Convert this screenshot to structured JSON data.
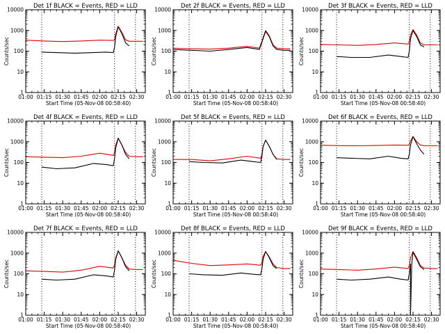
{
  "figure": {
    "x_label": "Start Time (05-Nov-08 00:58:40)",
    "y_label": "Counts/sec",
    "x_tick_labels": [
      "01:00",
      "01:15",
      "01:30",
      "01:45",
      "02:00",
      "02:15",
      "02:30"
    ],
    "y_tick_labels": [
      "1",
      "10",
      "100",
      "1000",
      "10000"
    ],
    "colors": {
      "events": "#000000",
      "lld": "#e00000",
      "axes": "#000000",
      "background": "#ffffff"
    }
  },
  "chart_data": [
    {
      "type": "line",
      "title": "Det 1f BLACK = Events, RED = LLD",
      "xlabel": "Start Time (05-Nov-08 00:58:40)",
      "ylabel": "Counts/sec",
      "y_scale": "log",
      "xlim": [
        "01:00",
        "02:37"
      ],
      "ylim": [
        1,
        10000
      ],
      "dotted_vlines": [
        "01:13",
        "02:12",
        "02:29"
      ],
      "series": [
        {
          "name": "BLACK = Events",
          "color": "#000000",
          "x": [
            "01:13",
            "01:25",
            "01:40",
            "01:55",
            "02:05",
            "02:11",
            "02:12",
            "02:13",
            "02:15",
            "02:18",
            "02:21",
            "02:24"
          ],
          "y": [
            90,
            85,
            80,
            85,
            90,
            85,
            150,
            500,
            1500,
            700,
            250,
            180
          ]
        },
        {
          "name": "RED = LLD",
          "color": "#e00000",
          "x": [
            "01:00",
            "01:15",
            "01:30",
            "01:45",
            "02:00",
            "02:11",
            "02:12",
            "02:13",
            "02:15",
            "02:18",
            "02:21",
            "02:24",
            "02:30",
            "02:35"
          ],
          "y": [
            340,
            310,
            290,
            310,
            340,
            330,
            350,
            700,
            1600,
            800,
            350,
            300,
            300,
            300
          ]
        }
      ]
    },
    {
      "type": "line",
      "title": "Det 2f BLACK = Events, RED = LLD",
      "xlabel": "Start Time (05-Nov-08 00:58:40)",
      "ylabel": "Counts/sec",
      "y_scale": "log",
      "xlim": [
        "01:00",
        "02:37"
      ],
      "ylim": [
        1,
        10000
      ],
      "dotted_vlines": [
        "01:13",
        "02:12",
        "02:29"
      ],
      "series": [
        {
          "name": "BLACK = Events",
          "color": "#000000",
          "x": [
            "01:00",
            "01:15",
            "01:30",
            "01:45",
            "02:00",
            "02:10",
            "02:13",
            "02:15",
            "02:18",
            "02:21",
            "02:24",
            "02:30",
            "02:35"
          ],
          "y": [
            120,
            110,
            100,
            120,
            150,
            120,
            400,
            900,
            500,
            180,
            120,
            110,
            110
          ]
        },
        {
          "name": "RED = LLD",
          "color": "#e00000",
          "x": [
            "01:00",
            "01:15",
            "01:30",
            "01:45",
            "02:00",
            "02:10",
            "02:13",
            "02:15",
            "02:18",
            "02:21",
            "02:24",
            "02:30",
            "02:35"
          ],
          "y": [
            140,
            130,
            125,
            140,
            170,
            140,
            450,
            1000,
            550,
            200,
            140,
            130,
            130
          ]
        }
      ]
    },
    {
      "type": "line",
      "title": "Det 3f BLACK = Events, RED = LLD",
      "xlabel": "Start Time (05-Nov-08 00:58:40)",
      "ylabel": "Counts/sec",
      "y_scale": "log",
      "xlim": [
        "01:00",
        "02:37"
      ],
      "ylim": [
        1,
        10000
      ],
      "dotted_vlines": [
        "01:13",
        "02:12",
        "02:29"
      ],
      "series": [
        {
          "name": "BLACK = Events",
          "color": "#000000",
          "x": [
            "01:13",
            "01:25",
            "01:40",
            "01:55",
            "02:05",
            "02:11",
            "02:12",
            "02:13",
            "02:15",
            "02:18",
            "02:21",
            "02:24"
          ],
          "y": [
            55,
            50,
            50,
            65,
            55,
            50,
            100,
            400,
            1000,
            500,
            200,
            160
          ]
        },
        {
          "name": "RED = LLD",
          "color": "#e00000",
          "x": [
            "01:00",
            "01:15",
            "01:30",
            "01:45",
            "02:00",
            "02:11",
            "02:12",
            "02:13",
            "02:15",
            "02:18",
            "02:21",
            "02:24",
            "02:30",
            "02:35"
          ],
          "y": [
            210,
            200,
            190,
            210,
            250,
            220,
            300,
            600,
            1100,
            600,
            250,
            200,
            200,
            200
          ]
        }
      ]
    },
    {
      "type": "line",
      "title": "Det 4f BLACK = Events, RED = LLD",
      "xlabel": "Start Time (05-Nov-08 00:58:40)",
      "ylabel": "Counts/sec",
      "y_scale": "log",
      "xlim": [
        "01:00",
        "02:37"
      ],
      "ylim": [
        1,
        10000
      ],
      "dotted_vlines": [
        "01:13",
        "02:12",
        "02:29"
      ],
      "series": [
        {
          "name": "BLACK = Events",
          "color": "#000000",
          "x": [
            "01:13",
            "01:25",
            "01:40",
            "01:55",
            "02:05",
            "02:11",
            "02:12",
            "02:13",
            "02:15",
            "02:18",
            "02:21",
            "02:24"
          ],
          "y": [
            60,
            50,
            55,
            90,
            80,
            70,
            150,
            500,
            1500,
            700,
            250,
            150
          ]
        },
        {
          "name": "RED = LLD",
          "color": "#e00000",
          "x": [
            "01:00",
            "01:15",
            "01:30",
            "01:45",
            "02:00",
            "02:11",
            "02:12",
            "02:13",
            "02:15",
            "02:18",
            "02:21",
            "02:24",
            "02:30",
            "02:35"
          ],
          "y": [
            190,
            180,
            170,
            200,
            280,
            220,
            300,
            700,
            1500,
            700,
            300,
            200,
            190,
            190
          ]
        }
      ]
    },
    {
      "type": "line",
      "title": "Det 5f BLACK = Events, RED = LLD",
      "xlabel": "Start Time (05-Nov-08 00:58:40)",
      "ylabel": "Counts/sec",
      "y_scale": "log",
      "xlim": [
        "01:00",
        "02:37"
      ],
      "ylim": [
        1,
        10000
      ],
      "dotted_vlines": [
        "01:13",
        "02:12",
        "02:29"
      ],
      "series": [
        {
          "name": "BLACK = Events",
          "color": "#000000",
          "x": [
            "01:13",
            "01:25",
            "01:40",
            "01:55",
            "02:05",
            "02:11",
            "02:12",
            "02:13",
            "02:15",
            "02:18",
            "02:21",
            "02:24"
          ],
          "y": [
            110,
            100,
            95,
            130,
            110,
            100,
            200,
            600,
            1200,
            600,
            250,
            140
          ]
        },
        {
          "name": "RED = LLD",
          "color": "#e00000",
          "x": [
            "01:00",
            "01:15",
            "01:30",
            "01:45",
            "02:00",
            "02:11",
            "02:12",
            "02:13",
            "02:15",
            "02:18",
            "02:21",
            "02:24",
            "02:30",
            "02:35"
          ],
          "y": [
            140,
            140,
            120,
            150,
            200,
            160,
            250,
            600,
            1200,
            600,
            250,
            150,
            140,
            140
          ]
        }
      ]
    },
    {
      "type": "line",
      "title": "Det 6f BLACK = Events, RED = LLD",
      "xlabel": "Start Time (05-Nov-08 00:58:40)",
      "ylabel": "Counts/sec",
      "y_scale": "log",
      "xlim": [
        "01:00",
        "02:37"
      ],
      "ylim": [
        1,
        10000
      ],
      "dotted_vlines": [
        "01:13",
        "02:12",
        "02:29"
      ],
      "series": [
        {
          "name": "BLACK = Events",
          "color": "#000000",
          "x": [
            "01:13",
            "01:25",
            "01:40",
            "01:55",
            "02:05",
            "02:11",
            "02:12",
            "02:13",
            "02:15",
            "02:18",
            "02:21",
            "02:24"
          ],
          "y": [
            170,
            160,
            150,
            200,
            160,
            150,
            250,
            700,
            1800,
            800,
            400,
            250
          ]
        },
        {
          "name": "RED = LLD",
          "color": "#e00000",
          "x": [
            "01:00",
            "01:15",
            "01:30",
            "01:45",
            "02:00",
            "02:11",
            "02:12",
            "02:13",
            "02:15",
            "02:18",
            "02:21",
            "02:24",
            "02:30",
            "02:35"
          ],
          "y": [
            680,
            650,
            640,
            660,
            700,
            680,
            750,
            1100,
            1800,
            1000,
            700,
            650,
            640,
            640
          ]
        }
      ]
    },
    {
      "type": "line",
      "title": "Det 7f BLACK = Events, RED = LLD",
      "xlabel": "Start Time (05-Nov-08 00:58:40)",
      "ylabel": "Counts/sec",
      "y_scale": "log",
      "xlim": [
        "01:00",
        "02:37"
      ],
      "ylim": [
        1,
        10000
      ],
      "dotted_vlines": [
        "01:13",
        "02:12",
        "02:29"
      ],
      "series": [
        {
          "name": "BLACK = Events",
          "color": "#000000",
          "x": [
            "01:13",
            "01:25",
            "01:40",
            "01:55",
            "02:05",
            "02:11",
            "02:12",
            "02:13",
            "02:15",
            "02:18",
            "02:21",
            "02:24"
          ],
          "y": [
            55,
            50,
            55,
            90,
            80,
            70,
            150,
            500,
            1300,
            600,
            220,
            140
          ]
        },
        {
          "name": "RED = LLD",
          "color": "#e00000",
          "x": [
            "01:00",
            "01:15",
            "01:30",
            "01:45",
            "02:00",
            "02:11",
            "02:12",
            "02:13",
            "02:15",
            "02:18",
            "02:21",
            "02:24",
            "02:30",
            "02:35"
          ],
          "y": [
            140,
            130,
            120,
            150,
            230,
            190,
            260,
            600,
            1300,
            600,
            260,
            170,
            160,
            160
          ]
        }
      ]
    },
    {
      "type": "line",
      "title": "Det 8f BLACK = Events, RED = LLD",
      "xlabel": "Start Time (05-Nov-08 00:58:40)",
      "ylabel": "Counts/sec",
      "y_scale": "log",
      "xlim": [
        "01:00",
        "02:37"
      ],
      "ylim": [
        1,
        10000
      ],
      "dotted_vlines": [
        "01:13",
        "02:12",
        "02:29"
      ],
      "series": [
        {
          "name": "BLACK = Events",
          "color": "#000000",
          "x": [
            "01:13",
            "01:25",
            "01:40",
            "01:55",
            "02:05",
            "02:11",
            "02:12",
            "02:13",
            "02:15",
            "02:18",
            "02:21",
            "02:24"
          ],
          "y": [
            100,
            90,
            85,
            110,
            95,
            90,
            180,
            500,
            1200,
            600,
            250,
            180
          ]
        },
        {
          "name": "RED = LLD",
          "color": "#e00000",
          "x": [
            "01:00",
            "01:15",
            "01:30",
            "01:45",
            "02:00",
            "02:11",
            "02:12",
            "02:13",
            "02:15",
            "02:18",
            "02:21",
            "02:24",
            "02:30",
            "02:35"
          ],
          "y": [
            450,
            320,
            250,
            270,
            300,
            260,
            350,
            700,
            1200,
            650,
            300,
            200,
            180,
            180
          ]
        }
      ]
    },
    {
      "type": "line",
      "title": "Det 9f BLACK = Events, RED = LLD",
      "xlabel": "Start Time (05-Nov-08 00:58:40)",
      "ylabel": "Counts/sec",
      "y_scale": "log",
      "xlim": [
        "01:00",
        "02:37"
      ],
      "ylim": [
        1,
        10000
      ],
      "dotted_vlines": [
        "01:13",
        "02:12",
        "02:29"
      ],
      "series": [
        {
          "name": "BLACK = Events",
          "color": "#000000",
          "x": [
            "01:13",
            "01:25",
            "01:40",
            "01:55",
            "02:05",
            "02:11",
            "02:12",
            "02:13",
            "02:13",
            "02:14",
            "02:15",
            "02:18",
            "02:21",
            "02:24"
          ],
          "y": [
            55,
            50,
            55,
            70,
            55,
            50,
            100,
            300,
            1,
            300,
            1100,
            500,
            220,
            160
          ]
        },
        {
          "name": "RED = LLD",
          "color": "#e00000",
          "x": [
            "01:00",
            "01:15",
            "01:30",
            "01:45",
            "02:00",
            "02:11",
            "02:12",
            "02:13",
            "02:15",
            "02:18",
            "02:21",
            "02:24",
            "02:30",
            "02:35"
          ],
          "y": [
            170,
            160,
            150,
            170,
            210,
            180,
            250,
            600,
            1200,
            600,
            250,
            190,
            180,
            180
          ]
        }
      ]
    }
  ]
}
